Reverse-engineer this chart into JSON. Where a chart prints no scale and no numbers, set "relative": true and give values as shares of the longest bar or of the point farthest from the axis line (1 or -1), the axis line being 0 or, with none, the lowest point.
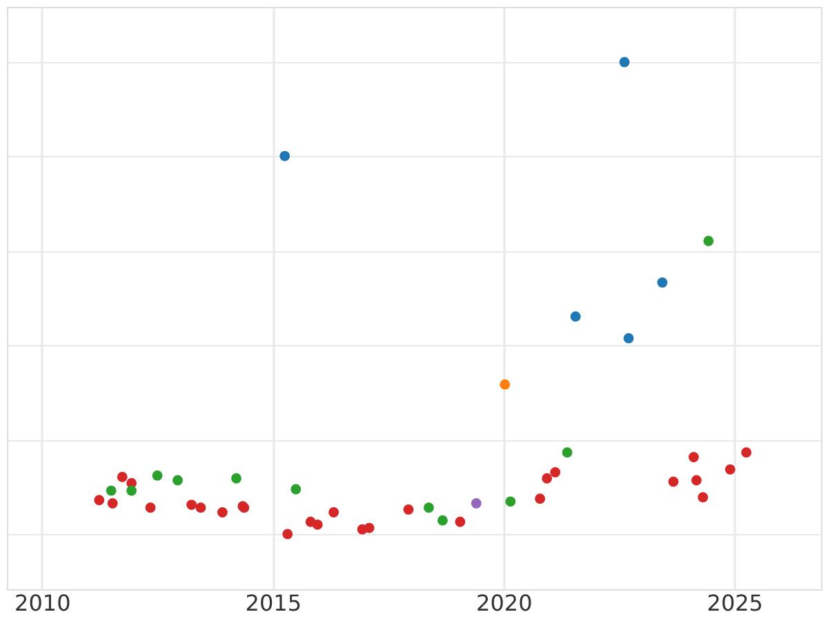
{
  "chart_data": {
    "type": "scatter",
    "relative": true,
    "xlim": [
      2009.24,
      2026.88
    ],
    "xticks": [
      2010,
      2015,
      2020,
      2025
    ],
    "grid": true,
    "marker": "circle",
    "series": [
      {
        "color": "#d62728",
        "x": [
          2011.24,
          2011.53,
          2011.74,
          2011.94,
          2012.35,
          2013.24,
          2013.44,
          2013.91,
          2014.35,
          2014.38,
          2015.32,
          2015.82,
          2015.97,
          2016.32,
          2016.94,
          2017.09,
          2017.94,
          2019.06,
          2020.79,
          2020.94,
          2021.12,
          2023.68,
          2024.12,
          2024.18,
          2024.32,
          2024.91,
          2025.26
        ],
        "values": [
          0.072,
          0.065,
          0.121,
          0.108,
          0.056,
          0.062,
          0.056,
          0.046,
          0.059,
          0.056,
          0,
          0.026,
          0.02,
          0.046,
          0.01,
          0.013,
          0.052,
          0.026,
          0.075,
          0.118,
          0.131,
          0.111,
          0.163,
          0.114,
          0.078,
          0.137,
          0.173
        ]
      },
      {
        "color": "#2ca02c",
        "x": [
          2011.5,
          2011.94,
          2012.5,
          2012.94,
          2014.21,
          2015.5,
          2018.38,
          2018.68,
          2020.15,
          2021.38,
          2024.44
        ],
        "values": [
          0.092,
          0.092,
          0.124,
          0.114,
          0.118,
          0.095,
          0.056,
          0.029,
          0.069,
          0.173,
          0.621
        ]
      },
      {
        "color": "#1f77b4",
        "x": [
          2015.26,
          2021.56,
          2022.62,
          2022.71,
          2023.44
        ],
        "values": [
          0.801,
          0.461,
          1,
          0.415,
          0.533
        ]
      },
      {
        "color": "#ff7f0e",
        "x": [
          2020.03
        ],
        "values": [
          0.317
        ]
      },
      {
        "color": "#9467bd",
        "x": [
          2019.41
        ],
        "values": [
          0.065
        ]
      }
    ]
  }
}
